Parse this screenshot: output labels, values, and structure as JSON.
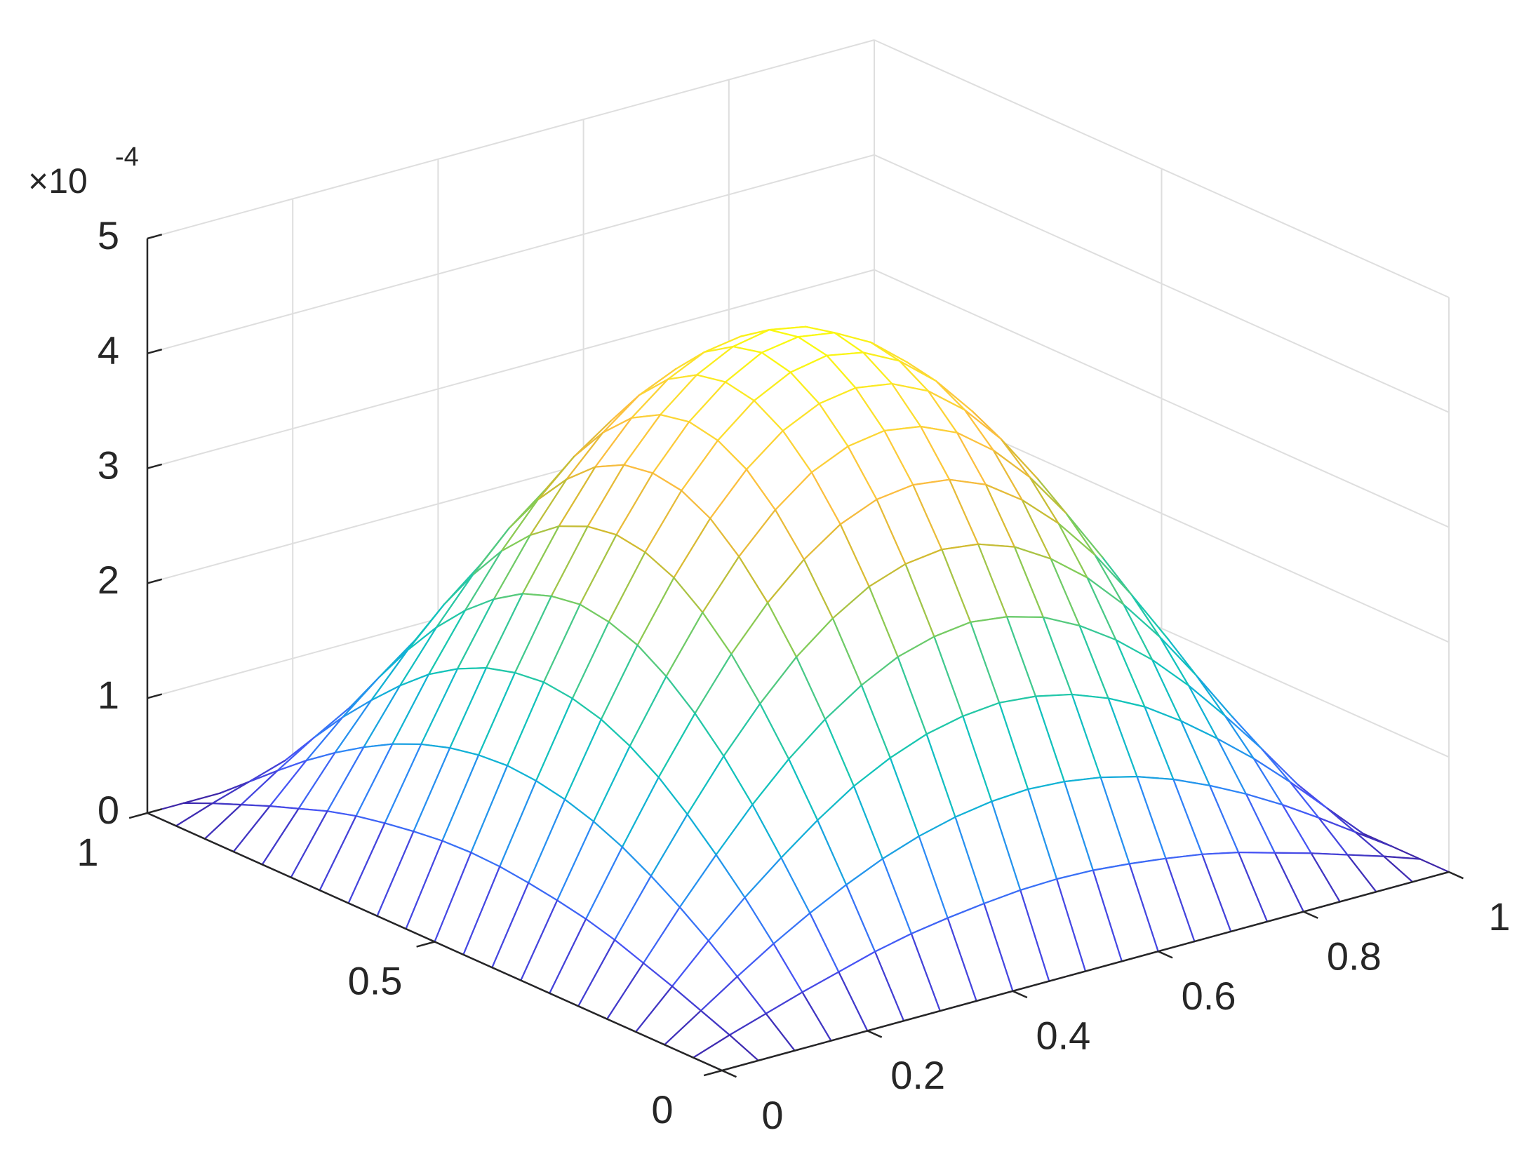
{
  "chart_data": {
    "type": "surface",
    "x": [
      0,
      0.05,
      0.1,
      0.15,
      0.2,
      0.25,
      0.3,
      0.35,
      0.4,
      0.45,
      0.5,
      0.55,
      0.6,
      0.65,
      0.7,
      0.75,
      0.8,
      0.85,
      0.9,
      0.95,
      1
    ],
    "y": [
      0,
      0.05,
      0.1,
      0.15,
      0.2,
      0.25,
      0.3,
      0.35,
      0.4,
      0.45,
      0.5,
      0.55,
      0.6,
      0.65,
      0.7,
      0.75,
      0.8,
      0.85,
      0.9,
      0.95,
      1
    ],
    "z": [
      [
        0,
        0,
        0,
        0,
        0,
        0,
        0,
        0,
        0,
        0,
        0,
        0,
        0,
        0,
        0,
        0,
        0,
        0,
        0,
        0,
        0
      ],
      [
        0,
        0.11,
        0.21,
        0.31,
        0.4,
        0.49,
        0.56,
        0.61,
        0.65,
        0.68,
        0.69,
        0.68,
        0.65,
        0.61,
        0.56,
        0.49,
        0.4,
        0.31,
        0.21,
        0.11,
        0
      ],
      [
        0,
        0.21,
        0.42,
        0.62,
        0.8,
        0.96,
        1.1,
        1.21,
        1.29,
        1.34,
        1.36,
        1.34,
        1.29,
        1.21,
        1.1,
        0.96,
        0.8,
        0.62,
        0.42,
        0.21,
        0
      ],
      [
        0,
        0.31,
        0.62,
        0.91,
        1.17,
        1.41,
        1.62,
        1.78,
        1.9,
        1.97,
        2,
        1.97,
        1.9,
        1.78,
        1.62,
        1.41,
        1.17,
        0.91,
        0.62,
        0.31,
        0
      ],
      [
        0,
        0.4,
        0.8,
        1.17,
        1.52,
        1.83,
        2.09,
        2.3,
        2.46,
        2.55,
        2.59,
        2.55,
        2.46,
        2.3,
        2.09,
        1.83,
        1.52,
        1.17,
        0.8,
        0.4,
        0
      ],
      [
        0,
        0.49,
        0.96,
        1.41,
        1.83,
        2.2,
        2.52,
        2.77,
        2.96,
        3.07,
        3.11,
        3.07,
        2.96,
        2.77,
        2.52,
        2.2,
        1.83,
        1.41,
        0.96,
        0.49,
        0
      ],
      [
        0,
        0.56,
        1.1,
        1.62,
        2.09,
        2.52,
        2.88,
        3.17,
        3.39,
        3.52,
        3.56,
        3.52,
        3.39,
        3.17,
        2.88,
        2.52,
        2.09,
        1.62,
        1.1,
        0.56,
        0
      ],
      [
        0,
        0.61,
        1.21,
        1.78,
        2.3,
        2.77,
        3.17,
        3.49,
        3.73,
        3.87,
        3.92,
        3.87,
        3.73,
        3.49,
        3.17,
        2.77,
        2.3,
        1.78,
        1.21,
        0.61,
        0
      ],
      [
        0,
        0.65,
        1.29,
        1.9,
        2.46,
        2.96,
        3.39,
        3.73,
        3.98,
        4.13,
        4.18,
        4.13,
        3.98,
        3.73,
        3.39,
        2.96,
        2.46,
        1.9,
        1.29,
        0.65,
        0
      ],
      [
        0,
        0.68,
        1.34,
        1.97,
        2.55,
        3.07,
        3.52,
        3.87,
        4.13,
        4.29,
        4.35,
        4.29,
        4.13,
        3.87,
        3.52,
        3.07,
        2.55,
        1.97,
        1.34,
        0.68,
        0
      ],
      [
        0,
        0.69,
        1.36,
        2,
        2.59,
        3.11,
        3.56,
        3.92,
        4.18,
        4.35,
        4.4,
        4.35,
        4.18,
        3.92,
        3.56,
        3.11,
        2.59,
        2,
        1.36,
        0.69,
        0
      ],
      [
        0,
        0.68,
        1.34,
        1.97,
        2.55,
        3.07,
        3.52,
        3.87,
        4.13,
        4.29,
        4.35,
        4.29,
        4.13,
        3.87,
        3.52,
        3.07,
        2.55,
        1.97,
        1.34,
        0.68,
        0
      ],
      [
        0,
        0.65,
        1.29,
        1.9,
        2.46,
        2.96,
        3.39,
        3.73,
        3.98,
        4.13,
        4.18,
        4.13,
        3.98,
        3.73,
        3.39,
        2.96,
        2.46,
        1.9,
        1.29,
        0.65,
        0
      ],
      [
        0,
        0.61,
        1.21,
        1.78,
        2.3,
        2.77,
        3.17,
        3.49,
        3.73,
        3.87,
        3.92,
        3.87,
        3.73,
        3.49,
        3.17,
        2.77,
        2.3,
        1.78,
        1.21,
        0.61,
        0
      ],
      [
        0,
        0.56,
        1.1,
        1.62,
        2.09,
        2.52,
        2.88,
        3.17,
        3.39,
        3.52,
        3.56,
        3.52,
        3.39,
        3.17,
        2.88,
        2.52,
        2.09,
        1.62,
        1.1,
        0.56,
        0
      ],
      [
        0,
        0.49,
        0.96,
        1.41,
        1.83,
        2.2,
        2.52,
        2.77,
        2.96,
        3.07,
        3.11,
        3.07,
        2.96,
        2.77,
        2.52,
        2.2,
        1.83,
        1.41,
        0.96,
        0.49,
        0
      ],
      [
        0,
        0.4,
        0.8,
        1.17,
        1.52,
        1.83,
        2.09,
        2.3,
        2.46,
        2.55,
        2.59,
        2.55,
        2.46,
        2.3,
        2.09,
        1.83,
        1.52,
        1.17,
        0.8,
        0.4,
        0
      ],
      [
        0,
        0.31,
        0.62,
        0.91,
        1.17,
        1.41,
        1.62,
        1.78,
        1.9,
        1.97,
        2,
        1.97,
        1.9,
        1.78,
        1.62,
        1.41,
        1.17,
        0.91,
        0.62,
        0.31,
        0
      ],
      [
        0,
        0.21,
        0.42,
        0.62,
        0.8,
        0.96,
        1.1,
        1.21,
        1.29,
        1.34,
        1.36,
        1.34,
        1.29,
        1.21,
        1.1,
        0.96,
        0.8,
        0.62,
        0.42,
        0.21,
        0
      ],
      [
        0,
        0.11,
        0.21,
        0.31,
        0.4,
        0.49,
        0.56,
        0.61,
        0.65,
        0.68,
        0.69,
        0.68,
        0.65,
        0.61,
        0.56,
        0.49,
        0.4,
        0.31,
        0.21,
        0.11,
        0
      ],
      [
        0,
        0,
        0,
        0,
        0,
        0,
        0,
        0,
        0,
        0,
        0,
        0,
        0,
        0,
        0,
        0,
        0,
        0,
        0,
        0,
        0
      ]
    ],
    "xlim": [
      0,
      1
    ],
    "ylim": [
      0,
      1
    ],
    "zlim": [
      0,
      5
    ],
    "xticks": [
      0,
      0.2,
      0.4,
      0.6,
      0.8,
      1
    ],
    "yticks": [
      0,
      0.5,
      1
    ],
    "zticks": [
      0,
      1,
      2,
      3,
      4,
      5
    ],
    "z_multiplier": "×10",
    "z_exponent": "-4",
    "grid": true,
    "colormap": "parula"
  }
}
